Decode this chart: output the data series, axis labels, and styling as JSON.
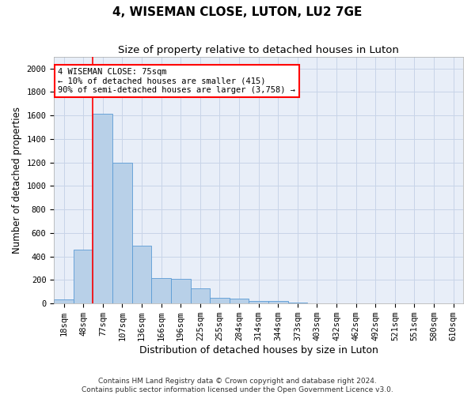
{
  "title": "4, WISEMAN CLOSE, LUTON, LU2 7GE",
  "subtitle": "Size of property relative to detached houses in Luton",
  "xlabel": "Distribution of detached houses by size in Luton",
  "ylabel": "Number of detached properties",
  "footnote1": "Contains HM Land Registry data © Crown copyright and database right 2024.",
  "footnote2": "Contains public sector information licensed under the Open Government Licence v3.0.",
  "categories": [
    "18sqm",
    "48sqm",
    "77sqm",
    "107sqm",
    "136sqm",
    "166sqm",
    "196sqm",
    "225sqm",
    "255sqm",
    "284sqm",
    "314sqm",
    "344sqm",
    "373sqm",
    "403sqm",
    "432sqm",
    "462sqm",
    "492sqm",
    "521sqm",
    "551sqm",
    "580sqm",
    "610sqm"
  ],
  "values": [
    35,
    460,
    1615,
    1195,
    490,
    215,
    210,
    130,
    50,
    40,
    25,
    20,
    10,
    0,
    0,
    0,
    0,
    0,
    0,
    0,
    0
  ],
  "bar_color": "#b8d0e8",
  "bar_edge_color": "#5b9bd5",
  "grid_color": "#c8d4e8",
  "background_color": "#e8eef8",
  "vline_color": "red",
  "annotation_line1": "4 WISEMAN CLOSE: 75sqm",
  "annotation_line2": "← 10% of detached houses are smaller (415)",
  "annotation_line3": "90% of semi-detached houses are larger (3,758) →",
  "annotation_box_color": "white",
  "annotation_box_edge_color": "red",
  "ylim": [
    0,
    2100
  ],
  "yticks": [
    0,
    200,
    400,
    600,
    800,
    1000,
    1200,
    1400,
    1600,
    1800,
    2000
  ],
  "title_fontsize": 11,
  "subtitle_fontsize": 9.5,
  "ylabel_fontsize": 8.5,
  "xlabel_fontsize": 9,
  "tick_fontsize": 7.5,
  "annotation_fontsize": 7.5,
  "footnote_fontsize": 6.5
}
